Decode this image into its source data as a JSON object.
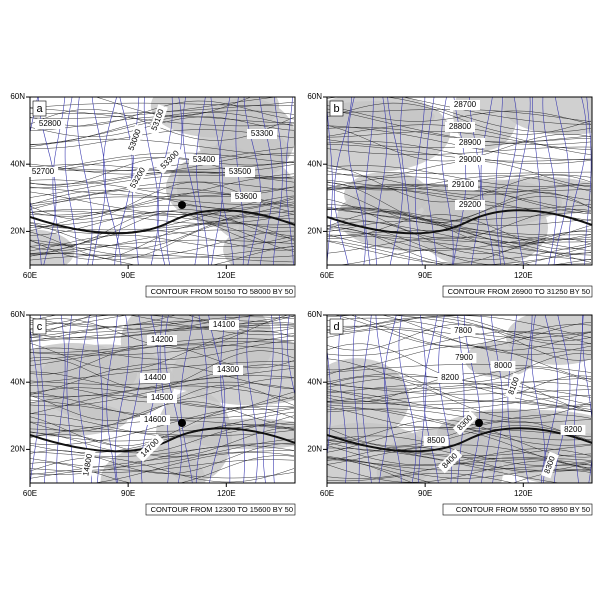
{
  "map": {
    "xlim": [
      60,
      141
    ],
    "ylim": [
      10,
      60
    ],
    "xticks": [
      {
        "value": 60,
        "label": "60E"
      },
      {
        "value": 90,
        "label": "90E"
      },
      {
        "value": 120,
        "label": "120E"
      }
    ],
    "yticks": [
      {
        "value": 60,
        "label": "60N"
      },
      {
        "value": 40,
        "label": "40N"
      },
      {
        "value": 20,
        "label": "20N"
      }
    ]
  },
  "panels": [
    {
      "label": "a",
      "contour_labels": [
        "52800",
        "52700",
        "53000",
        "53100",
        "53200",
        "53300",
        "53300",
        "53400",
        "53500",
        "53600"
      ],
      "note": "CONTOUR FROM 50150 TO 58000 BY 50"
    },
    {
      "label": "b",
      "contour_labels": [
        "28700",
        "28800",
        "28900",
        "29000",
        "29100",
        "29200"
      ],
      "note": "CONTOUR FROM 26900 TO 31250 BY 50"
    },
    {
      "label": "c",
      "contour_labels": [
        "14100",
        "14200",
        "14300",
        "14400",
        "14500",
        "14600",
        "14700",
        "14800"
      ],
      "note": "CONTOUR FROM 12300 TO 15600 BY 50"
    },
    {
      "label": "d",
      "contour_labels": [
        "7800",
        "7900",
        "8000",
        "8100",
        "8200",
        "8300",
        "8200",
        "8500",
        "8400",
        "8300"
      ],
      "note": "CONTOUR FROM 5550 TO 8950 BY 50"
    }
  ]
}
